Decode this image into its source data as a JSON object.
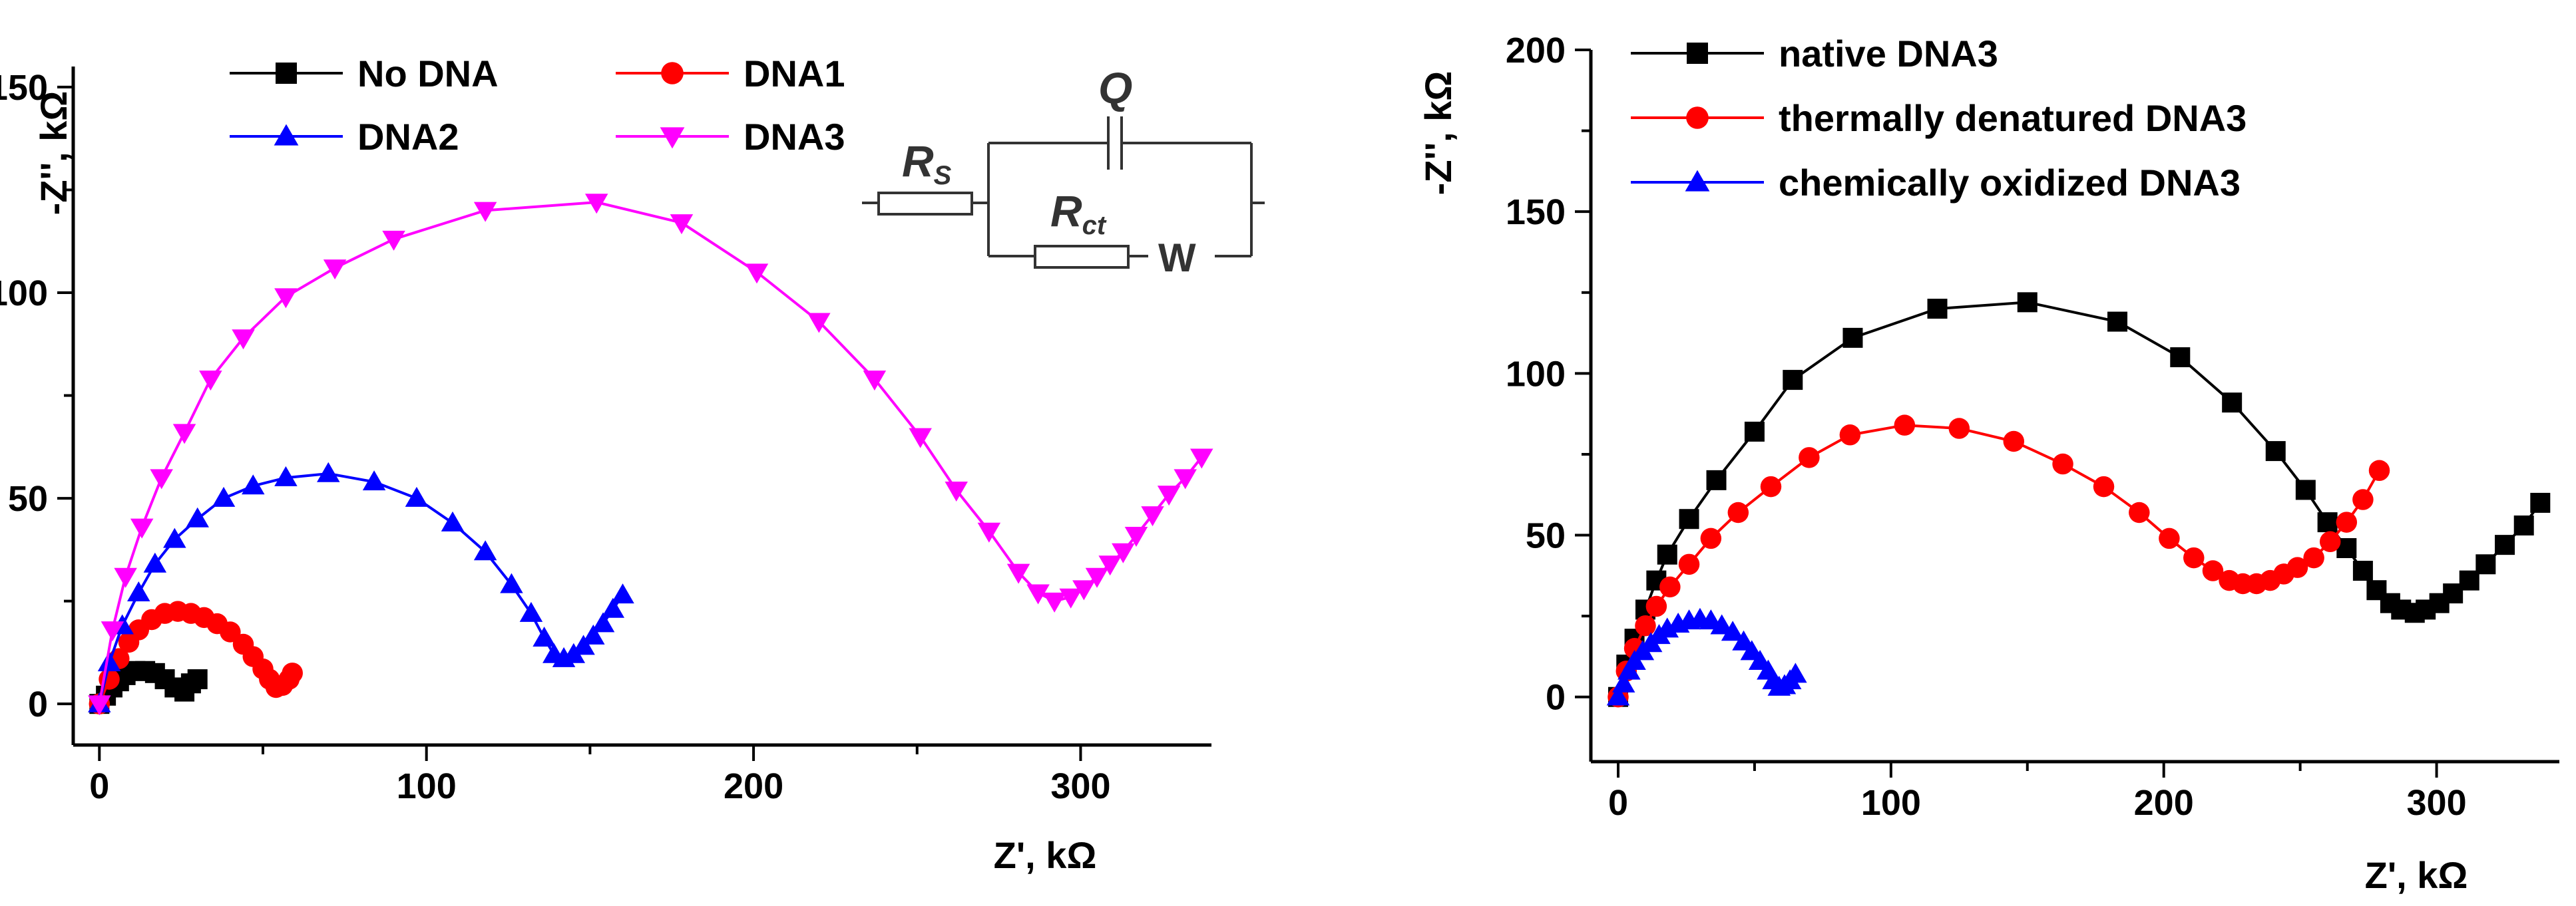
{
  "chart_data": [
    {
      "type": "line",
      "panel": "left",
      "xlabel": "Z', kΩ",
      "ylabel": "-Z'', kΩ",
      "xlim": [
        -8,
        340
      ],
      "ylim": [
        -10,
        155
      ],
      "xticks": [
        0,
        100,
        200,
        300
      ],
      "yticks": [
        0,
        50,
        100,
        150
      ],
      "legend_position": "top-left",
      "circuit": {
        "rs": "R",
        "rs_sub": "S",
        "q": "Q",
        "rct": "R",
        "rct_sub": "ct",
        "w": "W"
      },
      "series": [
        {
          "name": "No DNA",
          "color": "#000000",
          "marker": "square",
          "x": [
            0,
            2,
            4,
            6,
            8,
            11,
            14,
            17,
            20,
            23,
            26,
            28,
            30
          ],
          "y": [
            0,
            2,
            4,
            5.5,
            7,
            8,
            8,
            7.5,
            6,
            4,
            3,
            5,
            6
          ]
        },
        {
          "name": "DNA1",
          "color": "#ff0000",
          "marker": "circle",
          "x": [
            0,
            3,
            6,
            9,
            12,
            16,
            20,
            24,
            28,
            32,
            36,
            40,
            44,
            47,
            50,
            52,
            54,
            56,
            58,
            59
          ],
          "y": [
            0,
            6,
            11,
            15,
            18,
            20.5,
            22,
            22.5,
            22,
            21,
            19.5,
            17.5,
            14.5,
            11.5,
            8.5,
            6,
            4,
            4.5,
            6,
            7.5
          ]
        },
        {
          "name": "DNA2",
          "color": "#0000ff",
          "marker": "triangle-up",
          "x": [
            0,
            3,
            7,
            12,
            17,
            23,
            30,
            38,
            47,
            57,
            70,
            84,
            97,
            108,
            118,
            126,
            132,
            136,
            139,
            142,
            145,
            148,
            151,
            154,
            157,
            160
          ],
          "y": [
            0,
            10,
            19,
            27,
            34,
            40,
            45,
            50,
            53,
            55,
            56,
            54,
            50,
            44,
            37,
            29,
            22,
            16,
            12,
            11,
            12,
            14,
            16.5,
            19.5,
            23,
            26.5
          ]
        },
        {
          "name": "DNA3",
          "color": "#ff00ff",
          "marker": "triangle-down",
          "x": [
            0,
            4,
            8,
            13,
            19,
            26,
            34,
            44,
            57,
            72,
            90,
            118,
            152,
            178,
            201,
            220,
            237,
            251,
            262,
            272,
            281,
            287,
            292,
            297,
            301,
            305,
            309,
            313,
            317,
            322,
            327,
            332,
            337
          ],
          "y": [
            0,
            18,
            31,
            43,
            55,
            66,
            79,
            89,
            99,
            106,
            113,
            120,
            122,
            117,
            105,
            93,
            79,
            65,
            52,
            42,
            32,
            27,
            25,
            26,
            28,
            31,
            34,
            37,
            41,
            46,
            51,
            55,
            60
          ]
        }
      ]
    },
    {
      "type": "line",
      "panel": "right",
      "xlabel": "Z', kΩ",
      "ylabel": "-Z'', kΩ",
      "xlim": [
        -10,
        345
      ],
      "ylim": [
        -20,
        200
      ],
      "xticks": [
        0,
        100,
        200,
        300
      ],
      "yticks": [
        0,
        50,
        100,
        150,
        200
      ],
      "legend_position": "top-left",
      "series": [
        {
          "name": "native DNA3",
          "color": "#000000",
          "marker": "square",
          "x": [
            0,
            3,
            6,
            10,
            14,
            18,
            26,
            36,
            50,
            64,
            86,
            117,
            150,
            183,
            206,
            225,
            241,
            252,
            260,
            267,
            273,
            278,
            283,
            287,
            292,
            296,
            301,
            306,
            312,
            318,
            325,
            332,
            338
          ],
          "y": [
            0,
            10,
            18,
            27,
            36,
            44,
            55,
            67,
            82,
            98,
            111,
            120,
            122,
            116,
            105,
            91,
            76,
            64,
            54,
            46,
            39,
            33,
            29,
            27,
            26,
            27,
            29,
            32,
            36,
            41,
            47,
            53,
            60
          ]
        },
        {
          "name": "thermally denatured DNA3",
          "color": "#ff0000",
          "marker": "circle",
          "x": [
            0,
            3,
            6,
            10,
            14,
            19,
            26,
            34,
            44,
            56,
            70,
            85,
            105,
            125,
            145,
            163,
            178,
            191,
            202,
            211,
            218,
            224,
            229,
            234,
            239,
            244,
            249,
            255,
            261,
            267,
            273,
            279
          ],
          "y": [
            0,
            8,
            15,
            22,
            28,
            34,
            41,
            49,
            57,
            65,
            74,
            81,
            84,
            83,
            79,
            72,
            65,
            57,
            49,
            43,
            39,
            36,
            35,
            35,
            36,
            38,
            40,
            43,
            48,
            54,
            61,
            70
          ]
        },
        {
          "name": "chemically oxidized DNA3",
          "color": "#0000ff",
          "marker": "triangle-up",
          "x": [
            0,
            2,
            4,
            6,
            9,
            12,
            15,
            18,
            22,
            26,
            30,
            34,
            38,
            42,
            46,
            49,
            52,
            55,
            57,
            59,
            61,
            63,
            65
          ],
          "y": [
            0,
            4,
            8,
            11,
            14,
            16.5,
            19,
            21,
            22.5,
            23.5,
            24,
            23.5,
            22,
            20,
            17,
            14,
            11,
            8,
            5,
            3,
            3.5,
            5,
            7
          ]
        }
      ]
    }
  ]
}
